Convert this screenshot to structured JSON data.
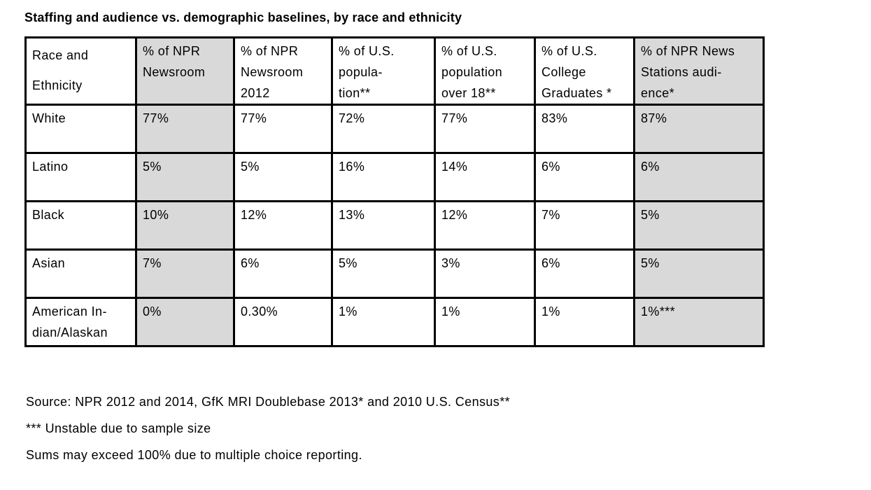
{
  "title": "Staffing and audience vs. demographic baselines, by race and ethnicity",
  "colors": {
    "shaded_cell": "#d9d9d9",
    "border": "#000000",
    "text": "#000000",
    "page_background": "#ffffff"
  },
  "table": {
    "headers": [
      {
        "label": "Race and\n Ethnicity"
      },
      {
        "label": "% of NPR\nNewsroom"
      },
      {
        "label": "% of NPR\nNewsroom\n2012"
      },
      {
        "label": "% of U.S.\npopula-\ntion**"
      },
      {
        "label": "% of U.S.\npopulation\nover 18**"
      },
      {
        "label": "% of U.S.\nCollege\nGraduates *"
      },
      {
        "label": "% of NPR News\nStations audi-\nence*"
      }
    ],
    "rows": [
      {
        "race": "White",
        "values": [
          "77%",
          "77%",
          "72%",
          "77%",
          "83%",
          "87%"
        ]
      },
      {
        "race": "Latino",
        "values": [
          "5%",
          "5%",
          "16%",
          "14%",
          "6%",
          "6%"
        ]
      },
      {
        "race": "Black",
        "values": [
          "10%",
          "12%",
          "13%",
          "12%",
          "7%",
          "5%"
        ]
      },
      {
        "race": "Asian",
        "values": [
          "7%",
          "6%",
          "5%",
          "3%",
          "6%",
          "5%"
        ]
      },
      {
        "race": "American In-\ndian/Alaskan",
        "values": [
          "0%",
          "0.30%",
          "1%",
          "1%",
          "1%",
          "1%***"
        ]
      }
    ]
  },
  "footnotes": {
    "source": "Source: NPR 2012 and 2014, GfK MRI Doublebase 2013* and 2010 U.S. Census**",
    "unstable": "*** Unstable due to sample size",
    "sums": "Sums may exceed 100% due to multiple choice reporting."
  },
  "chart_data": {
    "type": "table",
    "title": "Staffing and audience vs. demographic baselines, by race and ethnicity",
    "columns": [
      "Race and Ethnicity",
      "% of NPR Newsroom",
      "% of NPR Newsroom 2012",
      "% of U.S. population**",
      "% of U.S. population over 18**",
      "% of U.S. College Graduates *",
      "% of NPR News Stations audience*"
    ],
    "rows": [
      [
        "White",
        "77%",
        "77%",
        "72%",
        "77%",
        "83%",
        "87%"
      ],
      [
        "Latino",
        "5%",
        "5%",
        "16%",
        "14%",
        "6%",
        "6%"
      ],
      [
        "Black",
        "10%",
        "12%",
        "13%",
        "12%",
        "7%",
        "5%"
      ],
      [
        "Asian",
        "7%",
        "6%",
        "5%",
        "3%",
        "6%",
        "5%"
      ],
      [
        "American Indian/Alaskan",
        "0%",
        "0.30%",
        "1%",
        "1%",
        "1%",
        "1%***"
      ]
    ]
  }
}
